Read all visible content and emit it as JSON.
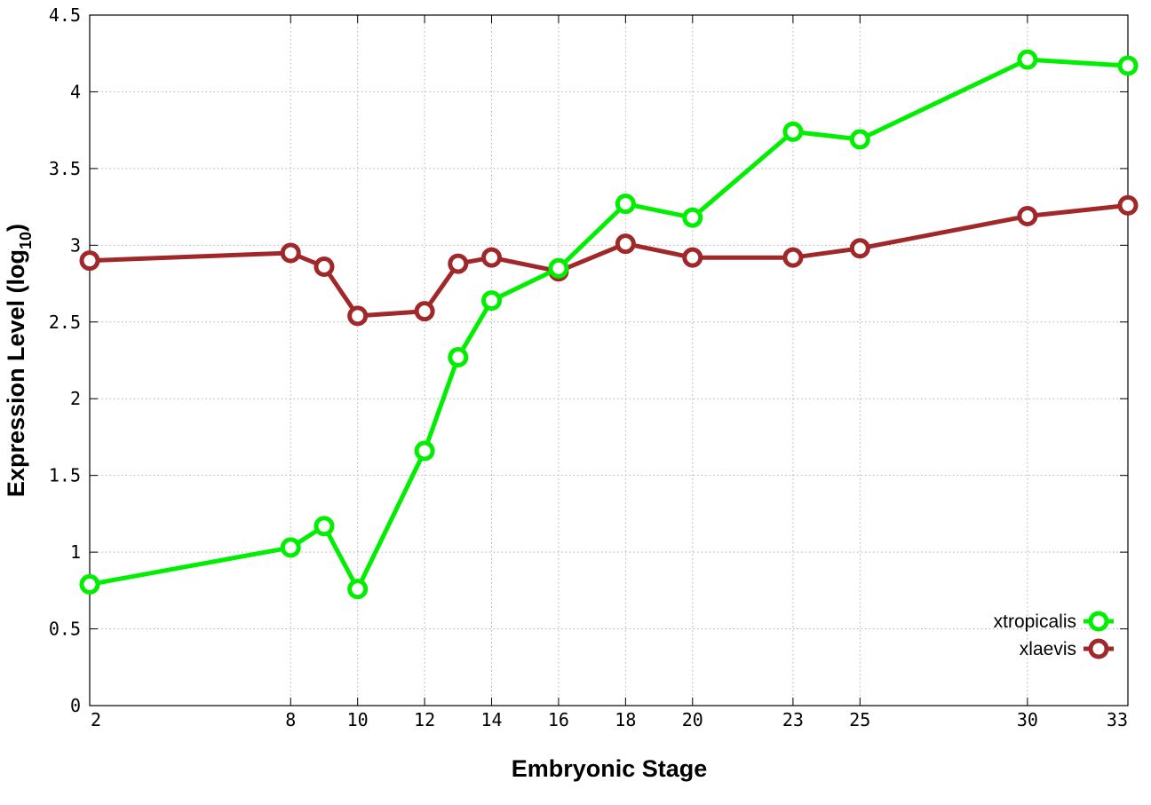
{
  "chart_data": {
    "type": "line",
    "title": "",
    "xlabel": "Embryonic Stage",
    "ylabel_main": "Expression Level (log",
    "ylabel_sub": "10",
    "ylabel_close": ")",
    "x": [
      2,
      8,
      9,
      10,
      12,
      13,
      14,
      16,
      18,
      20,
      23,
      25,
      30,
      33
    ],
    "x_tick_labels": [
      "2",
      "8",
      "10",
      "12",
      "14",
      "16",
      "18",
      "20",
      "23",
      "25",
      "30",
      "33"
    ],
    "ylim": [
      0,
      4.5
    ],
    "y_tick_labels": [
      "0",
      "0.5",
      "1",
      "1.5",
      "2",
      "2.5",
      "3",
      "3.5",
      "4",
      "4.5"
    ],
    "grid": true,
    "legend_position": "bottom-right",
    "series": [
      {
        "name": "xtropicalis",
        "color": "#00ee00",
        "values": [
          0.79,
          1.03,
          1.17,
          0.76,
          1.66,
          2.27,
          2.64,
          2.85,
          3.27,
          3.18,
          3.74,
          3.69,
          4.21,
          4.17
        ]
      },
      {
        "name": "xlaevis",
        "color": "#a0282a",
        "values": [
          2.9,
          2.95,
          2.86,
          2.54,
          2.57,
          2.88,
          2.92,
          2.83,
          3.01,
          2.92,
          2.92,
          2.98,
          3.19,
          3.26
        ]
      }
    ]
  }
}
